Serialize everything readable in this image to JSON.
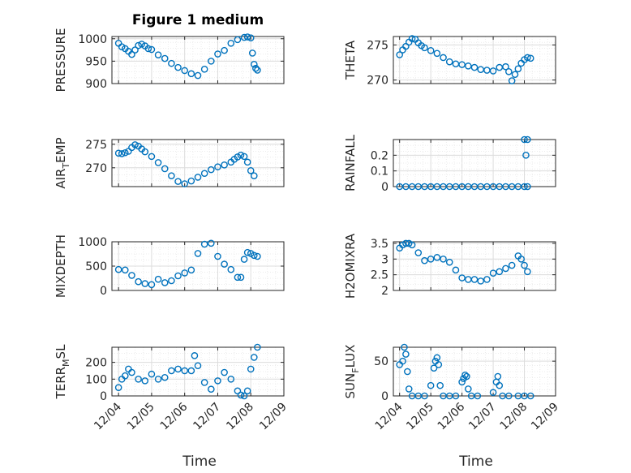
{
  "figure": {
    "title": "Figure 1 medium"
  },
  "colors": {
    "marker": "#0072bd",
    "axis": "#262626",
    "grid": "#d9d9d9"
  },
  "chart_data": [
    {
      "type": "scatter",
      "title": "Figure 1 medium",
      "ylabel_html": [
        "PRESSURE"
      ],
      "ylim": [
        900,
        1005
      ],
      "yticks": [
        {
          "v": 900,
          "label": "900"
        },
        {
          "v": 950,
          "label": "950"
        },
        {
          "v": 1000,
          "label": "1000"
        }
      ],
      "x": [
        4.0,
        4.1,
        4.2,
        4.3,
        4.4,
        4.5,
        4.6,
        4.7,
        4.8,
        4.9,
        5.0,
        5.2,
        5.4,
        5.6,
        5.8,
        6.0,
        6.2,
        6.4,
        6.6,
        6.8,
        7.0,
        7.2,
        7.4,
        7.6,
        7.8,
        7.9,
        8.0,
        8.05,
        8.1,
        8.15,
        8.2
      ],
      "y": [
        990,
        982,
        978,
        972,
        965,
        975,
        985,
        988,
        984,
        978,
        976,
        964,
        956,
        945,
        936,
        929,
        922,
        918,
        932,
        950,
        966,
        974,
        990,
        998,
        1003,
        1004,
        1002,
        968,
        943,
        934,
        930
      ]
    },
    {
      "type": "scatter",
      "ylabel_html": [
        "THETA"
      ],
      "ylim": [
        269.5,
        276.2
      ],
      "yticks": [
        {
          "v": 270,
          "label": "270"
        },
        {
          "v": 275,
          "label": "275"
        }
      ],
      "x": [
        4.0,
        4.1,
        4.2,
        4.3,
        4.4,
        4.5,
        4.6,
        4.7,
        4.8,
        5.0,
        5.2,
        5.4,
        5.6,
        5.8,
        6.0,
        6.2,
        6.4,
        6.6,
        6.8,
        7.0,
        7.2,
        7.4,
        7.5,
        7.6,
        7.7,
        7.8,
        7.9,
        8.0,
        8.1,
        8.2
      ],
      "y": [
        273.6,
        274.3,
        274.8,
        275.4,
        275.9,
        275.8,
        275.3,
        274.9,
        274.6,
        274.2,
        273.8,
        273.2,
        272.6,
        272.3,
        272.2,
        272.0,
        271.8,
        271.5,
        271.4,
        271.3,
        271.8,
        271.9,
        271.2,
        269.9,
        270.8,
        271.6,
        272.4,
        272.9,
        273.2,
        273.1
      ]
    },
    {
      "type": "scatter",
      "ylabel_html": [
        "AIR",
        "T",
        "EMP"
      ],
      "ylim": [
        266,
        276
      ],
      "yticks": [
        {
          "v": 270,
          "label": "270"
        },
        {
          "v": 275,
          "label": "275"
        }
      ],
      "x": [
        4.0,
        4.1,
        4.2,
        4.3,
        4.4,
        4.5,
        4.6,
        4.7,
        4.8,
        5.0,
        5.2,
        5.4,
        5.6,
        5.8,
        6.0,
        6.2,
        6.4,
        6.6,
        6.8,
        7.0,
        7.2,
        7.4,
        7.5,
        7.6,
        7.7,
        7.8,
        7.9,
        8.0,
        8.1
      ],
      "y": [
        273.1,
        273.0,
        273.2,
        273.5,
        274.3,
        274.9,
        274.6,
        274.0,
        273.4,
        272.4,
        271.1,
        269.8,
        268.3,
        267.1,
        266.6,
        267.2,
        268.0,
        268.8,
        269.6,
        270.2,
        270.6,
        271.2,
        271.8,
        272.3,
        272.7,
        272.4,
        271.2,
        269.4,
        268.3
      ]
    },
    {
      "type": "scatter",
      "ylabel_html": [
        "RAINFALL"
      ],
      "ylim": [
        0,
        0.3
      ],
      "yticks": [
        {
          "v": 0,
          "label": "0"
        },
        {
          "v": 0.1,
          "label": "0.1"
        },
        {
          "v": 0.2,
          "label": "0.2"
        }
      ],
      "x": [
        4.0,
        4.2,
        4.4,
        4.6,
        4.8,
        5.0,
        5.2,
        5.4,
        5.6,
        5.8,
        6.0,
        6.2,
        6.4,
        6.6,
        6.8,
        7.0,
        7.2,
        7.4,
        7.6,
        7.8,
        8.0,
        8.0,
        8.05,
        8.1,
        8.1
      ],
      "y": [
        0,
        0,
        0,
        0,
        0,
        0,
        0,
        0,
        0,
        0,
        0,
        0,
        0,
        0,
        0,
        0,
        0,
        0,
        0,
        0,
        0,
        0.3,
        0.2,
        0.3,
        0
      ]
    },
    {
      "type": "scatter",
      "ylabel_html": [
        "MIXDEPTH"
      ],
      "ylim": [
        0,
        1000
      ],
      "yticks": [
        {
          "v": 0,
          "label": "0"
        },
        {
          "v": 500,
          "label": "500"
        },
        {
          "v": 1000,
          "label": "1000"
        }
      ],
      "x": [
        4.0,
        4.2,
        4.4,
        4.6,
        4.8,
        5.0,
        5.2,
        5.4,
        5.6,
        5.8,
        6.0,
        6.2,
        6.4,
        6.6,
        6.8,
        7.0,
        7.2,
        7.4,
        7.6,
        7.7,
        7.8,
        7.9,
        8.0,
        8.1,
        8.2
      ],
      "y": [
        430,
        420,
        310,
        180,
        140,
        120,
        230,
        160,
        200,
        300,
        360,
        420,
        760,
        950,
        970,
        700,
        540,
        430,
        270,
        270,
        640,
        780,
        760,
        720,
        700
      ]
    },
    {
      "type": "scatter",
      "ylabel_html": [
        "H2OMIXRA"
      ],
      "ylim": [
        2,
        3.55
      ],
      "yticks": [
        {
          "v": 2,
          "label": "2"
        },
        {
          "v": 2.5,
          "label": "2.5"
        },
        {
          "v": 3,
          "label": "3"
        },
        {
          "v": 3.5,
          "label": "3.5"
        }
      ],
      "x": [
        4.0,
        4.1,
        4.2,
        4.3,
        4.4,
        4.6,
        4.8,
        5.0,
        5.2,
        5.4,
        5.6,
        5.8,
        6.0,
        6.2,
        6.4,
        6.6,
        6.8,
        7.0,
        7.2,
        7.4,
        7.6,
        7.8,
        7.9,
        8.0,
        8.1
      ],
      "y": [
        3.35,
        3.45,
        3.5,
        3.5,
        3.45,
        3.2,
        2.95,
        3.0,
        3.05,
        3.0,
        2.9,
        2.65,
        2.4,
        2.35,
        2.35,
        2.3,
        2.35,
        2.55,
        2.6,
        2.7,
        2.8,
        3.1,
        3.0,
        2.8,
        2.6
      ]
    },
    {
      "type": "scatter",
      "ylabel_html": [
        "TERR",
        "M",
        "SL"
      ],
      "ylim": [
        0,
        290
      ],
      "yticks": [
        {
          "v": 0,
          "label": "0"
        },
        {
          "v": 100,
          "label": "100"
        },
        {
          "v": 200,
          "label": "200"
        }
      ],
      "x": [
        4.0,
        4.1,
        4.2,
        4.3,
        4.4,
        4.6,
        4.8,
        5.0,
        5.2,
        5.4,
        5.6,
        5.8,
        6.0,
        6.2,
        6.3,
        6.4,
        6.6,
        6.8,
        7.0,
        7.2,
        7.4,
        7.6,
        7.7,
        7.8,
        7.9,
        8.0,
        8.1,
        8.2
      ],
      "y": [
        50,
        100,
        120,
        160,
        140,
        100,
        90,
        130,
        100,
        110,
        150,
        160,
        150,
        150,
        240,
        180,
        80,
        40,
        90,
        140,
        100,
        30,
        5,
        0,
        30,
        160,
        230,
        290
      ]
    },
    {
      "type": "scatter",
      "ylabel_html": [
        "SUN",
        "F",
        "LUX"
      ],
      "ylim": [
        0,
        70
      ],
      "yticks": [
        {
          "v": 0,
          "label": "0"
        },
        {
          "v": 50,
          "label": "50"
        }
      ],
      "x": [
        4.0,
        4.1,
        4.15,
        4.2,
        4.25,
        4.3,
        4.4,
        4.6,
        4.8,
        5.0,
        5.1,
        5.15,
        5.2,
        5.25,
        5.3,
        5.4,
        5.6,
        5.8,
        6.0,
        6.05,
        6.1,
        6.15,
        6.2,
        6.3,
        6.5,
        7.0,
        7.1,
        7.15,
        7.2,
        7.3,
        7.5,
        7.8,
        8.0,
        8.2
      ],
      "y": [
        45,
        50,
        70,
        60,
        35,
        10,
        0,
        0,
        0,
        15,
        40,
        50,
        55,
        45,
        15,
        0,
        0,
        0,
        20,
        25,
        30,
        28,
        10,
        0,
        0,
        5,
        20,
        28,
        15,
        0,
        0,
        0,
        0,
        0
      ]
    }
  ],
  "axes_shared": {
    "xlim": [
      3.8,
      9.0
    ],
    "xticks": [
      {
        "v": 4,
        "label": "12/04"
      },
      {
        "v": 5,
        "label": "12/05"
      },
      {
        "v": 6,
        "label": "12/06"
      },
      {
        "v": 7,
        "label": "12/07"
      },
      {
        "v": 8,
        "label": "12/08"
      },
      {
        "v": 9,
        "label": "12/09"
      }
    ],
    "xlabel": "Time"
  }
}
